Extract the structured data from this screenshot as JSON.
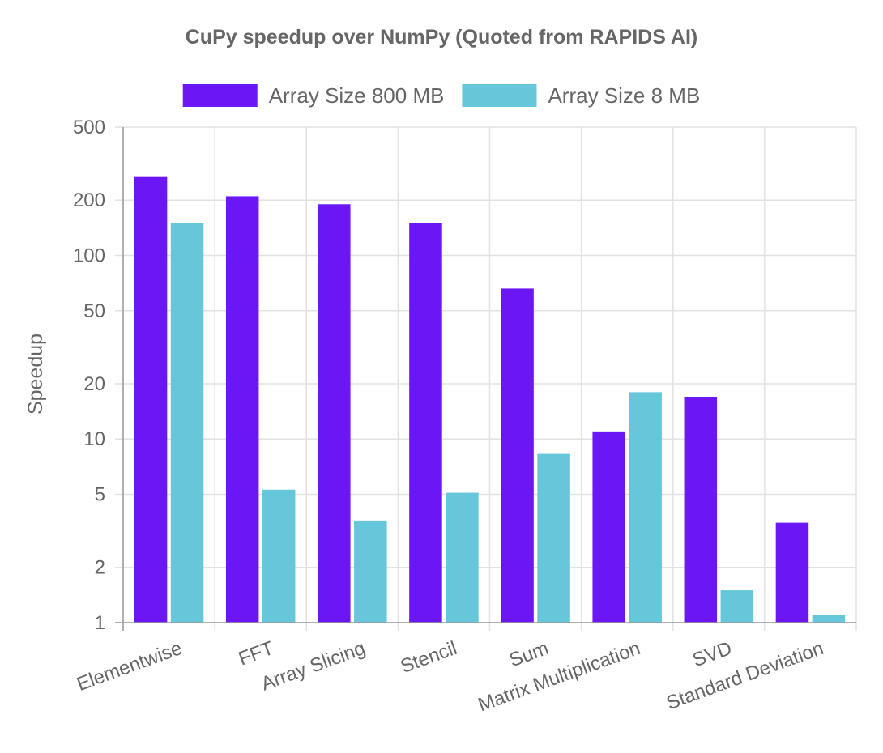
{
  "chart_data": {
    "type": "bar",
    "title": "CuPy speedup over NumPy (Quoted from RAPIDS AI)",
    "xlabel": "",
    "ylabel": "Speedup",
    "yscale": "log",
    "ylim": [
      1,
      500
    ],
    "yticks": [
      1,
      2,
      5,
      10,
      20,
      50,
      100,
      200,
      500
    ],
    "grid": true,
    "legend_position": "top",
    "categories": [
      "Elementwise",
      "FFT",
      "Array Slicing",
      "Stencil",
      "Sum",
      "Matrix Multiplication",
      "SVD",
      "Standard Deviation"
    ],
    "series": [
      {
        "name": "Array Size 800 MB",
        "color": "#6b16f5",
        "values": [
          270,
          210,
          190,
          150,
          66,
          11,
          17,
          3.5
        ]
      },
      {
        "name": "Array Size 8 MB",
        "color": "#66c6da",
        "values": [
          150,
          5.3,
          3.6,
          5.1,
          8.3,
          18,
          1.5,
          1.1
        ]
      }
    ]
  }
}
